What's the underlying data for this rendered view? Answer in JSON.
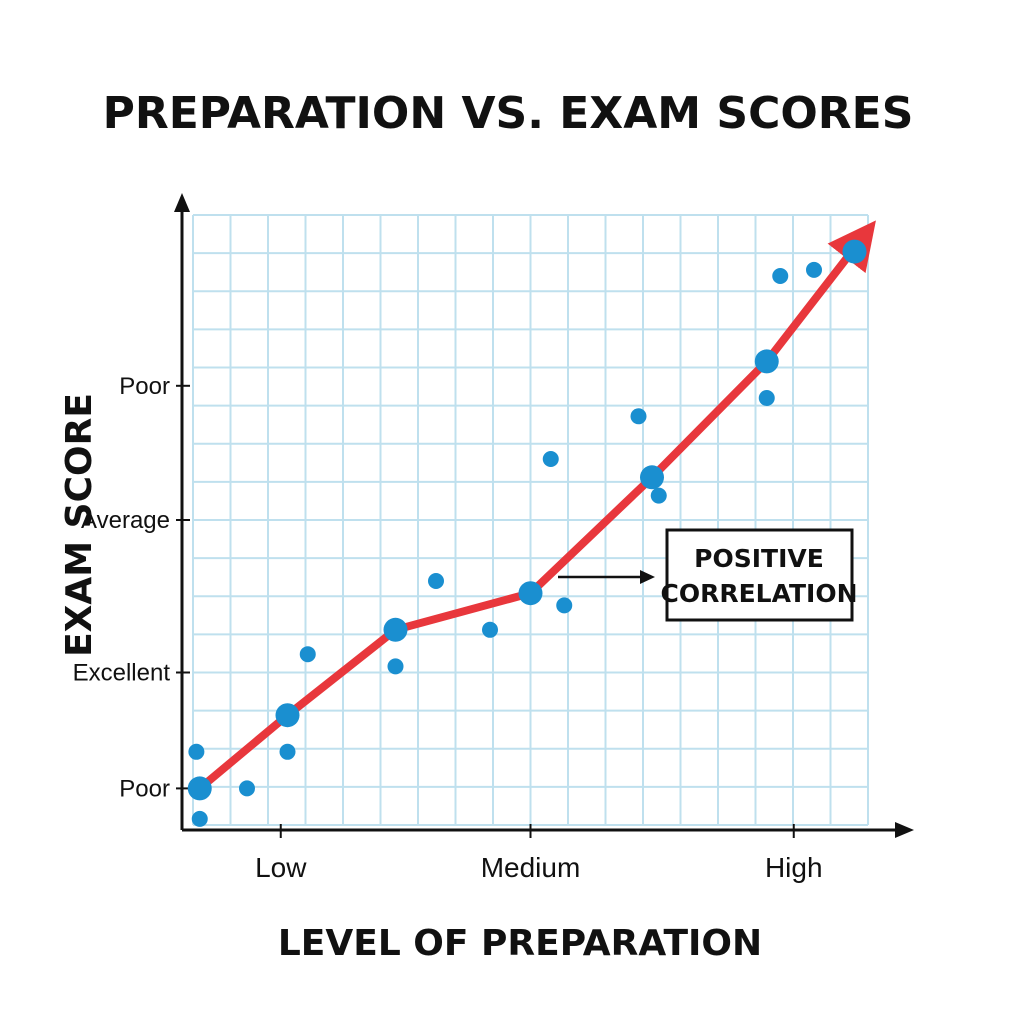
{
  "chart_data": {
    "type": "scatter",
    "title": "PREPARATION VS. EXAM SCORES",
    "xlabel": "LEVEL OF PREPARATION",
    "ylabel": "EXAM SCORE",
    "xlim": [
      0,
      10
    ],
    "ylim": [
      0,
      10
    ],
    "x_ticks": [
      {
        "value": 1.3,
        "label": "Low"
      },
      {
        "value": 5.0,
        "label": "Medium"
      },
      {
        "value": 8.9,
        "label": "High"
      }
    ],
    "y_ticks": [
      {
        "value": 0.6,
        "label": "Poor"
      },
      {
        "value": 2.5,
        "label": "Excellent"
      },
      {
        "value": 5.0,
        "label": "Average"
      },
      {
        "value": 7.2,
        "label": "Poor"
      }
    ],
    "grid": true,
    "colors": {
      "points": "#1a8fd0",
      "trend": "#e8373c",
      "grid": "#bfe0ee",
      "axis": "#111111"
    },
    "series": [
      {
        "points": [
          [
            0.1,
            0.6
          ],
          [
            0.05,
            1.2
          ],
          [
            0.1,
            0.1
          ],
          [
            0.8,
            0.6
          ],
          [
            1.4,
            1.8
          ],
          [
            1.4,
            1.2
          ],
          [
            1.7,
            2.8
          ],
          [
            3.0,
            3.2
          ],
          [
            3.0,
            2.6
          ],
          [
            3.6,
            4.0
          ],
          [
            4.4,
            3.2
          ],
          [
            5.0,
            3.8
          ],
          [
            5.5,
            3.6
          ],
          [
            5.3,
            6.0
          ],
          [
            6.8,
            5.7
          ],
          [
            6.9,
            5.4
          ],
          [
            6.6,
            6.7
          ],
          [
            8.5,
            7.0
          ],
          [
            8.5,
            7.6
          ],
          [
            8.7,
            9.0
          ],
          [
            9.2,
            9.1
          ],
          [
            9.8,
            9.4
          ]
        ],
        "large_points": [
          [
            0.1,
            0.6
          ],
          [
            1.4,
            1.8
          ],
          [
            3.0,
            3.2
          ],
          [
            5.0,
            3.8
          ],
          [
            6.8,
            5.7
          ],
          [
            8.5,
            7.6
          ],
          [
            9.8,
            9.4
          ]
        ]
      }
    ],
    "trend_line": [
      [
        0.1,
        0.6
      ],
      [
        1.4,
        1.8
      ],
      [
        3.0,
        3.2
      ],
      [
        5.0,
        3.8
      ],
      [
        6.8,
        5.7
      ],
      [
        8.5,
        7.6
      ],
      [
        9.9,
        9.6
      ]
    ],
    "annotations": [
      {
        "text_lines": [
          "POSITIVE",
          "CORRELATION"
        ],
        "points_to": [
          5.0,
          3.8
        ]
      }
    ]
  }
}
